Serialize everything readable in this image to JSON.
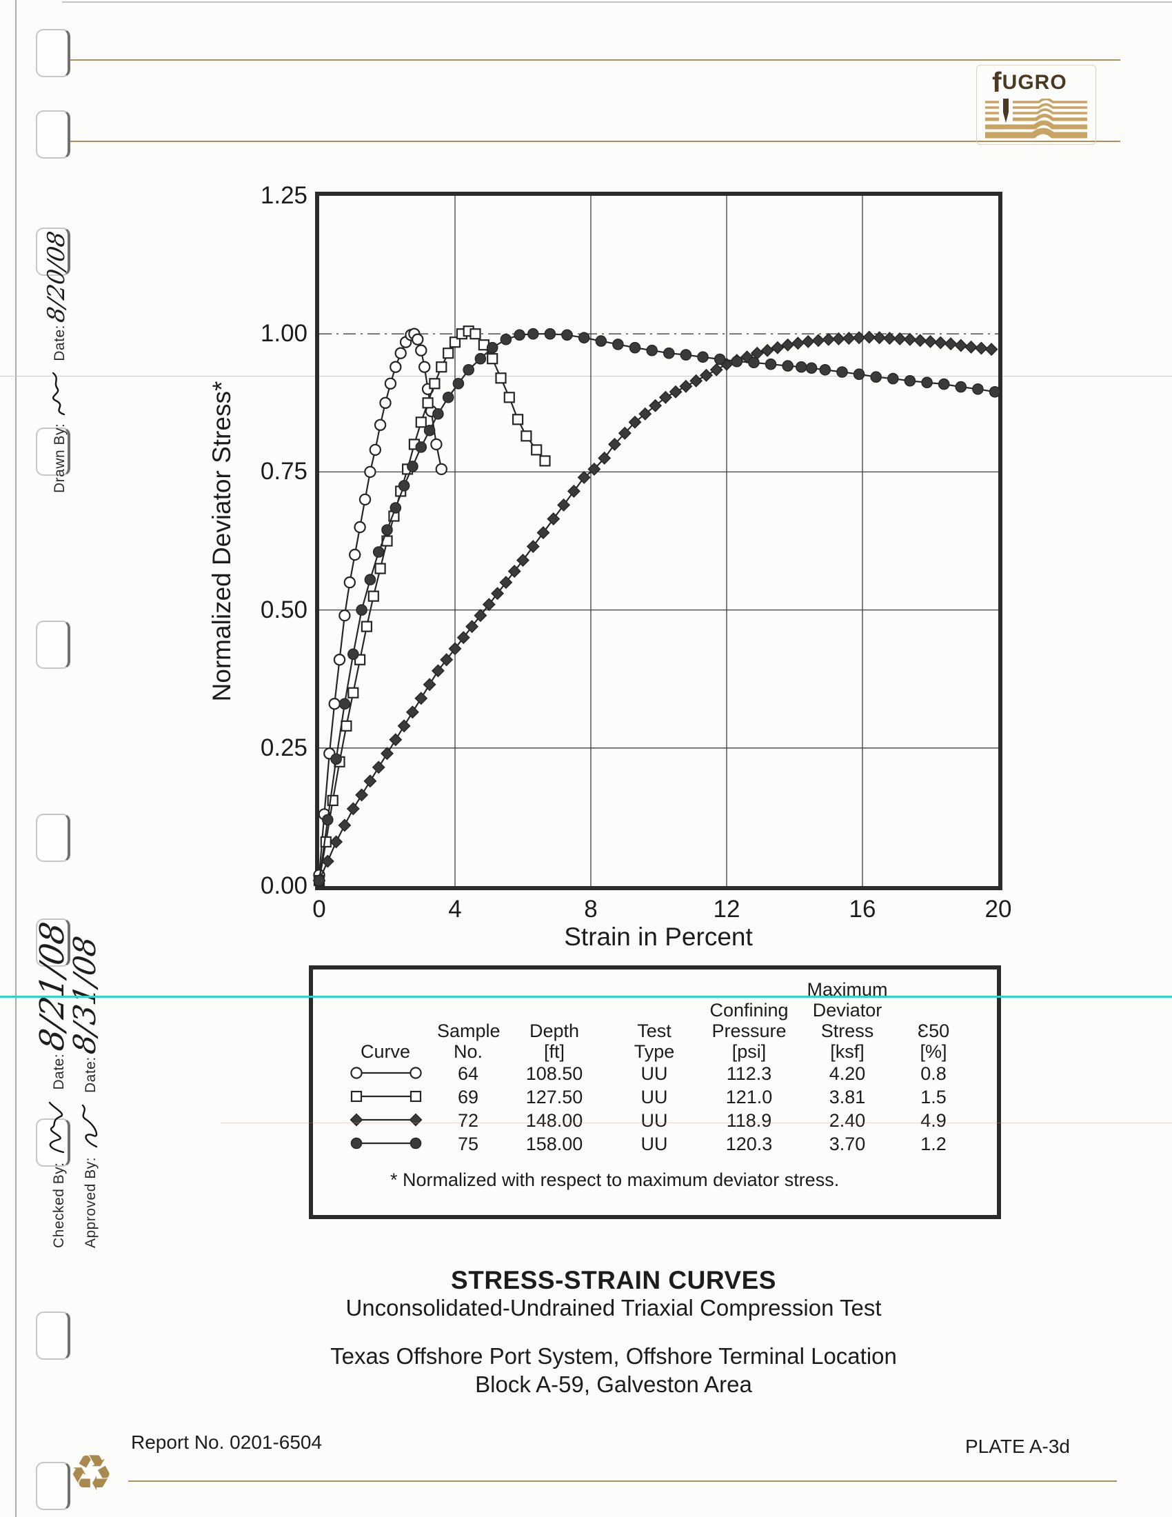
{
  "logo": {
    "text": "FUGRO"
  },
  "margin_notes": {
    "drawn_by_label": "Drawn By:",
    "drawn_date_label": "Date:",
    "drawn_date_value": "8/20/08",
    "checked_by_label": "Checked By:",
    "checked_date_label": "Date:",
    "checked_date_value": "8/21/08",
    "approved_by_label": "Approved By:",
    "approved_date_label": "Date:",
    "approved_date_value": "8/31/08"
  },
  "chart_data": {
    "type": "line",
    "title": "",
    "xlabel": "Strain in Percent",
    "ylabel": "Normalized Deviator Stress*",
    "xlim": [
      0,
      20
    ],
    "ylim": [
      0,
      1.25
    ],
    "x_ticks": [
      0,
      4,
      8,
      12,
      16,
      20
    ],
    "x_tick_labels": [
      "0",
      "4",
      "8",
      "12",
      "16",
      "20"
    ],
    "y_ticks": [
      0,
      0.25,
      0.5,
      0.75,
      1.0,
      1.25
    ],
    "y_tick_labels": [
      "0.00",
      "0.25",
      "0.50",
      "0.75",
      "1.00",
      "1.25"
    ],
    "x_gridlines": [
      4,
      8,
      12,
      16
    ],
    "y_gridlines": [
      0.25,
      0.5,
      0.75,
      1.0
    ],
    "grid": true,
    "legend_position": "table-below",
    "series": [
      {
        "name": "Sample 64 (108.50 ft)",
        "marker": "open-circle",
        "x": [
          0,
          0.15,
          0.3,
          0.45,
          0.6,
          0.75,
          0.9,
          1.05,
          1.2,
          1.35,
          1.5,
          1.65,
          1.8,
          1.95,
          2.1,
          2.25,
          2.4,
          2.55,
          2.7,
          2.8,
          2.9,
          3.0,
          3.1,
          3.2,
          3.3,
          3.45,
          3.6
        ],
        "y": [
          0.02,
          0.13,
          0.24,
          0.33,
          0.41,
          0.49,
          0.55,
          0.6,
          0.65,
          0.7,
          0.75,
          0.79,
          0.835,
          0.875,
          0.91,
          0.94,
          0.965,
          0.985,
          0.998,
          1.0,
          0.99,
          0.97,
          0.94,
          0.9,
          0.86,
          0.8,
          0.755
        ]
      },
      {
        "name": "Sample 69 (127.50 ft)",
        "marker": "open-square",
        "x": [
          0,
          0.2,
          0.4,
          0.6,
          0.8,
          1.0,
          1.2,
          1.4,
          1.6,
          1.8,
          2.0,
          2.2,
          2.4,
          2.6,
          2.8,
          3.0,
          3.2,
          3.4,
          3.6,
          3.8,
          4.0,
          4.2,
          4.4,
          4.6,
          4.85,
          5.1,
          5.35,
          5.6,
          5.85,
          6.1,
          6.4,
          6.65
        ],
        "y": [
          0.01,
          0.08,
          0.155,
          0.225,
          0.29,
          0.35,
          0.41,
          0.47,
          0.525,
          0.575,
          0.625,
          0.67,
          0.715,
          0.755,
          0.8,
          0.84,
          0.875,
          0.91,
          0.94,
          0.965,
          0.985,
          1.0,
          1.005,
          1.0,
          0.98,
          0.955,
          0.92,
          0.885,
          0.845,
          0.815,
          0.79,
          0.77
        ]
      },
      {
        "name": "Sample 72 (148.00 ft)",
        "marker": "filled-diamond",
        "x": [
          0,
          0.25,
          0.5,
          0.75,
          1.0,
          1.25,
          1.5,
          1.75,
          2.0,
          2.25,
          2.5,
          2.75,
          3.0,
          3.25,
          3.5,
          3.75,
          4.0,
          4.25,
          4.5,
          4.75,
          5.0,
          5.25,
          5.5,
          5.75,
          6.0,
          6.3,
          6.6,
          6.9,
          7.2,
          7.5,
          7.8,
          8.1,
          8.4,
          8.7,
          9.0,
          9.3,
          9.6,
          9.9,
          10.2,
          10.5,
          10.8,
          11.1,
          11.4,
          11.7,
          12.0,
          12.3,
          12.6,
          12.9,
          13.2,
          13.5,
          13.8,
          14.1,
          14.4,
          14.7,
          15.0,
          15.3,
          15.6,
          15.9,
          16.2,
          16.5,
          16.8,
          17.1,
          17.4,
          17.7,
          18.0,
          18.3,
          18.6,
          18.9,
          19.2,
          19.5,
          19.8
        ],
        "y": [
          0.01,
          0.045,
          0.08,
          0.11,
          0.14,
          0.165,
          0.19,
          0.215,
          0.24,
          0.265,
          0.29,
          0.315,
          0.34,
          0.365,
          0.39,
          0.41,
          0.43,
          0.45,
          0.47,
          0.49,
          0.51,
          0.53,
          0.55,
          0.57,
          0.59,
          0.615,
          0.64,
          0.665,
          0.69,
          0.715,
          0.74,
          0.755,
          0.775,
          0.8,
          0.82,
          0.84,
          0.855,
          0.87,
          0.885,
          0.895,
          0.905,
          0.915,
          0.925,
          0.935,
          0.945,
          0.952,
          0.958,
          0.965,
          0.97,
          0.975,
          0.98,
          0.983,
          0.986,
          0.988,
          0.99,
          0.991,
          0.992,
          0.993,
          0.994,
          0.993,
          0.992,
          0.991,
          0.99,
          0.988,
          0.986,
          0.984,
          0.982,
          0.979,
          0.976,
          0.974,
          0.972
        ]
      },
      {
        "name": "Sample 75 (158.00 ft)",
        "marker": "filled-circle",
        "x": [
          0,
          0.25,
          0.5,
          0.75,
          1.0,
          1.25,
          1.5,
          1.75,
          2.0,
          2.25,
          2.5,
          2.75,
          3.0,
          3.25,
          3.5,
          3.8,
          4.1,
          4.4,
          4.75,
          5.1,
          5.5,
          5.9,
          6.3,
          6.8,
          7.3,
          7.8,
          8.3,
          8.8,
          9.3,
          9.8,
          10.3,
          10.8,
          11.3,
          11.8,
          12.3,
          12.8,
          13.3,
          13.8,
          14.2,
          14.5,
          14.9,
          15.4,
          15.9,
          16.4,
          16.9,
          17.4,
          17.9,
          18.4,
          18.9,
          19.4,
          19.9
        ],
        "y": [
          0.01,
          0.12,
          0.23,
          0.33,
          0.42,
          0.5,
          0.555,
          0.605,
          0.645,
          0.685,
          0.725,
          0.76,
          0.795,
          0.825,
          0.855,
          0.885,
          0.91,
          0.935,
          0.955,
          0.975,
          0.99,
          0.998,
          1.0,
          1.0,
          0.998,
          0.993,
          0.987,
          0.981,
          0.975,
          0.97,
          0.965,
          0.962,
          0.958,
          0.954,
          0.95,
          0.948,
          0.945,
          0.942,
          0.94,
          0.938,
          0.935,
          0.931,
          0.927,
          0.922,
          0.919,
          0.915,
          0.912,
          0.909,
          0.904,
          0.9,
          0.895
        ]
      }
    ]
  },
  "legend_table": {
    "columns": [
      {
        "id": "curve",
        "lines": [
          "Curve"
        ]
      },
      {
        "id": "sample_no",
        "lines": [
          "Sample",
          "No."
        ]
      },
      {
        "id": "depth",
        "lines": [
          "Depth",
          "[ft]"
        ]
      },
      {
        "id": "test_type",
        "lines": [
          "Test",
          "Type"
        ]
      },
      {
        "id": "confining_pressure",
        "lines": [
          "Confining",
          "Pressure",
          "[psi]"
        ]
      },
      {
        "id": "max_deviator_stress",
        "lines": [
          "Maximum",
          "Deviator",
          "Stress",
          "[ksf]"
        ]
      },
      {
        "id": "e50",
        "lines": [
          "Ɛ50",
          "[%]"
        ]
      }
    ],
    "rows": [
      {
        "marker": "open-circle",
        "sample_no": "64",
        "depth": "108.50",
        "test_type": "UU",
        "confining_pressure": "112.3",
        "max_deviator_stress": "4.20",
        "e50": "0.8"
      },
      {
        "marker": "open-square",
        "sample_no": "69",
        "depth": "127.50",
        "test_type": "UU",
        "confining_pressure": "121.0",
        "max_deviator_stress": "3.81",
        "e50": "1.5"
      },
      {
        "marker": "filled-diamond",
        "sample_no": "72",
        "depth": "148.00",
        "test_type": "UU",
        "confining_pressure": "118.9",
        "max_deviator_stress": "2.40",
        "e50": "4.9"
      },
      {
        "marker": "filled-circle",
        "sample_no": "75",
        "depth": "158.00",
        "test_type": "UU",
        "confining_pressure": "120.3",
        "max_deviator_stress": "3.70",
        "e50": "1.2"
      }
    ],
    "footnote": "* Normalized with respect to maximum deviator stress."
  },
  "titles": {
    "main": "STRESS-STRAIN CURVES",
    "subtitle": "Unconsolidated-Undrained Triaxial Compression Test",
    "location_line1": "Texas Offshore Port System, Offshore Terminal Location",
    "location_line2": "Block A-59, Galveston Area"
  },
  "footer": {
    "report_no": "Report No. 0201-6504",
    "plate": "PLATE A-3d",
    "recycle_icon": "♻"
  },
  "colors": {
    "accent_tan": "#b08e57",
    "logo_brown": "#4b3a22",
    "logo_stripe": "#c9a364",
    "scanner_cyan": "#0fe2d2",
    "ink": "#262626"
  }
}
